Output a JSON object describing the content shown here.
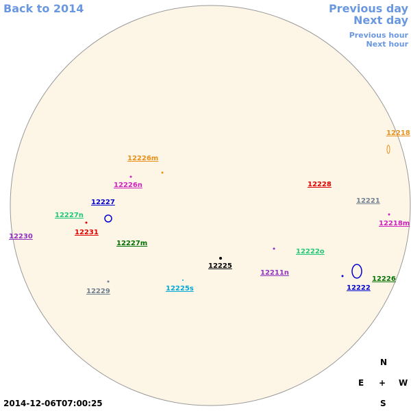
{
  "nav": {
    "back": "Back to 2014",
    "previous_day": "Previous day",
    "next_day": "Next day",
    "previous_hour": "Previous hour",
    "next_hour": "Next hour"
  },
  "timestamp": "2014-12-06T07:00:25",
  "compass": {
    "north": "N",
    "east": "E",
    "center": "+",
    "west": "W",
    "south": "S"
  },
  "regions": [
    {
      "label": "12218",
      "color": "#e8901a"
    },
    {
      "label": "12226m",
      "color": "#e8901a"
    },
    {
      "label": "12226n",
      "color": "#d020c0"
    },
    {
      "label": "12228",
      "color": "#e00000"
    },
    {
      "label": "12221",
      "color": "#708090"
    },
    {
      "label": "12218m",
      "color": "#d020c0"
    },
    {
      "label": "12227",
      "color": "#0000d0"
    },
    {
      "label": "12227n",
      "color": "#20c878"
    },
    {
      "label": "12231",
      "color": "#e00000"
    },
    {
      "label": "12230",
      "color": "#9030c0"
    },
    {
      "label": "12227m",
      "color": "#007000"
    },
    {
      "label": "12225",
      "color": "#000000"
    },
    {
      "label": "12222o",
      "color": "#20c878"
    },
    {
      "label": "12211n",
      "color": "#9030c0"
    },
    {
      "label": "12226",
      "color": "#007000"
    },
    {
      "label": "12222",
      "color": "#0000d0"
    },
    {
      "label": "12229",
      "color": "#708090"
    },
    {
      "label": "12225s",
      "color": "#00a8d8"
    }
  ]
}
